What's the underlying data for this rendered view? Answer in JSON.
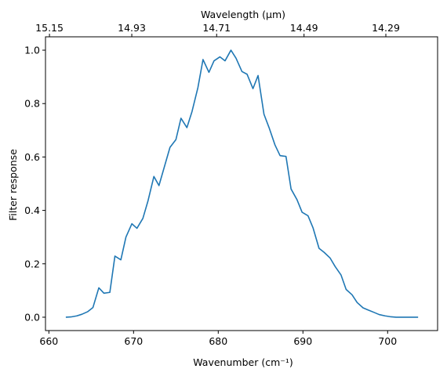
{
  "chart_data": {
    "type": "line",
    "xlabel": "Wavenumber (cm⁻¹)",
    "ylabel": "Filter response",
    "top_xlabel": "Wavelength (μm)",
    "xlim": [
      659.6,
      705.9
    ],
    "ylim": [
      -0.05,
      1.05
    ],
    "x_ticks": [
      660,
      670,
      680,
      690,
      700
    ],
    "x_tick_labels": [
      "660",
      "670",
      "680",
      "690",
      "700"
    ],
    "y_ticks": [
      0.0,
      0.2,
      0.4,
      0.6,
      0.8,
      1.0
    ],
    "y_tick_labels": [
      "0.0",
      "0.2",
      "0.4",
      "0.6",
      "0.8",
      "1.0"
    ],
    "top_ticks": [
      {
        "label": "15.15",
        "x": 660.07
      },
      {
        "label": "14.93",
        "x": 669.79
      },
      {
        "label": "14.71",
        "x": 679.81
      },
      {
        "label": "14.49",
        "x": 690.13
      },
      {
        "label": "14.29",
        "x": 699.79
      }
    ],
    "grid": false,
    "line_color": "#1f77b4",
    "series": [
      {
        "x": [
          662.0,
          662.6,
          663.3,
          663.9,
          664.6,
          665.2,
          665.9,
          666.5,
          667.2,
          667.8,
          668.5,
          669.1,
          669.8,
          670.4,
          671.1,
          671.7,
          672.4,
          673.0,
          673.7,
          674.3,
          675.0,
          675.6,
          676.3,
          676.9,
          677.6,
          678.2,
          678.9,
          679.5,
          680.2,
          680.8,
          681.5,
          682.1,
          682.8,
          683.4,
          684.1,
          684.7,
          685.4,
          686.0,
          686.7,
          687.3,
          688.0,
          688.6,
          689.3,
          689.9,
          690.6,
          691.2,
          691.9,
          692.5,
          693.2,
          693.8,
          694.5,
          695.1,
          695.8,
          696.4,
          697.1,
          697.7,
          698.4,
          699.0,
          699.7,
          700.3,
          701.0,
          701.6,
          702.3,
          702.9,
          703.6
        ],
        "y": [
          0.0,
          0.001,
          0.005,
          0.011,
          0.021,
          0.036,
          0.11,
          0.09,
          0.093,
          0.229,
          0.215,
          0.3,
          0.35,
          0.333,
          0.37,
          0.435,
          0.527,
          0.493,
          0.57,
          0.636,
          0.665,
          0.745,
          0.71,
          0.77,
          0.86,
          0.965,
          0.917,
          0.96,
          0.975,
          0.96,
          1.0,
          0.97,
          0.92,
          0.91,
          0.856,
          0.905,
          0.76,
          0.71,
          0.645,
          0.605,
          0.602,
          0.48,
          0.44,
          0.393,
          0.38,
          0.334,
          0.258,
          0.243,
          0.222,
          0.19,
          0.158,
          0.104,
          0.084,
          0.055,
          0.035,
          0.027,
          0.018,
          0.01,
          0.005,
          0.002,
          0.0,
          0.0,
          0.0,
          0.0,
          0.0
        ]
      }
    ]
  }
}
